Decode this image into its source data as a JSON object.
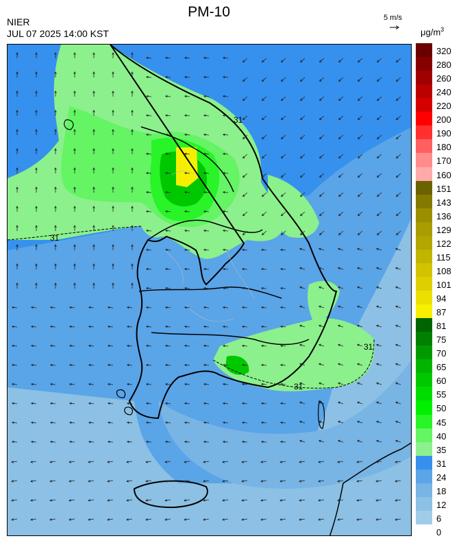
{
  "header": {
    "title": "PM-10",
    "org": "NIER",
    "timestamp": "JUL 07 2025 14:00 KST"
  },
  "wind_scale": {
    "label": "5 m/s",
    "icon": "arrow-right-icon"
  },
  "unit": {
    "base": "μg/m",
    "sup": "3"
  },
  "map": {
    "contour_label": "31",
    "region": "Korean peninsula (South Korea)"
  },
  "legend": {
    "ticks": [
      "320",
      "280",
      "260",
      "240",
      "220",
      "200",
      "190",
      "180",
      "170",
      "160",
      "151",
      "143",
      "136",
      "129",
      "122",
      "115",
      "108",
      "101",
      "94",
      "87",
      "81",
      "75",
      "70",
      "65",
      "60",
      "55",
      "50",
      "45",
      "40",
      "35",
      "31",
      "24",
      "18",
      "12",
      "6",
      "0"
    ],
    "colors": [
      "#6b0000",
      "#860000",
      "#a00000",
      "#bb0000",
      "#d50000",
      "#ff0000",
      "#ff3030",
      "#ff6060",
      "#ff8c8c",
      "#ffaaaa",
      "#6b6200",
      "#857a00",
      "#9b8f00",
      "#a89c00",
      "#b3a600",
      "#c2b500",
      "#d1c300",
      "#ddd000",
      "#ece000",
      "#f6f000",
      "#006400",
      "#007f00",
      "#009a00",
      "#00b400",
      "#00c800",
      "#00dc00",
      "#00f000",
      "#28f428",
      "#64f464",
      "#8cf08c",
      "#3690ee",
      "#5aa4e8",
      "#78b4e4",
      "#8cc0e4",
      "#a0cce8"
    ]
  }
}
